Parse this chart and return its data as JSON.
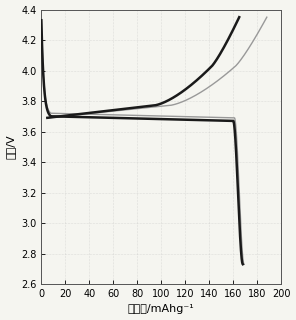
{
  "title": "",
  "xlabel": "比容量/mAhg⁻¹",
  "ylabel": "电压/V",
  "xlim": [
    0,
    200
  ],
  "ylim": [
    2.6,
    4.4
  ],
  "xticks": [
    0,
    20,
    40,
    60,
    80,
    100,
    120,
    140,
    160,
    180,
    200
  ],
  "yticks": [
    2.6,
    2.8,
    3.0,
    3.2,
    3.4,
    3.6,
    3.8,
    4.0,
    4.2,
    4.4
  ],
  "background_color": "#f5f5f0",
  "line_color_dark": "#1a1a1a",
  "line_color_gray": "#999999",
  "figsize": [
    2.96,
    3.2
  ],
  "dpi": 100
}
